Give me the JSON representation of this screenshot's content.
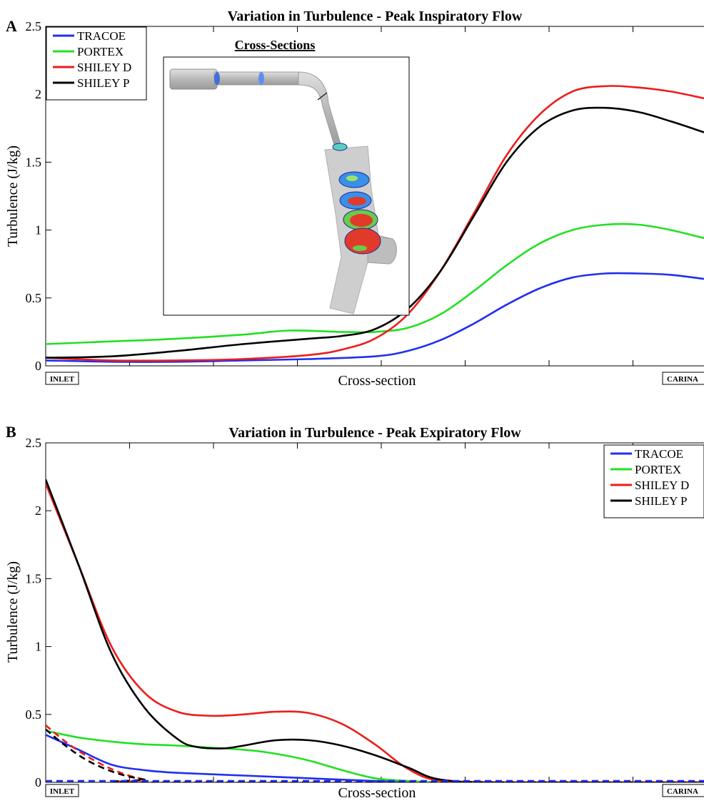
{
  "chart_data": [
    {
      "panel_letter": "A",
      "type": "line",
      "title": "Variation in Turbulence - Peak Inspiratory Flow",
      "xlabel": "Cross-section",
      "ylabel": "Turbulence (J/kg)",
      "x_start_label": "INLET",
      "x_end_label": "CARINA",
      "xlim": [
        0,
        1
      ],
      "ylim": [
        0,
        2.5
      ],
      "yticks": [
        "0",
        "0.5",
        "1",
        "1.5",
        "2",
        "2.5"
      ],
      "grid": false,
      "legend_position": "top-left",
      "inset_title": "Cross-Sections",
      "series": [
        {
          "name": "TRACOE",
          "color": "#1f2ff0",
          "dash": false,
          "x": [
            0,
            0.1,
            0.2,
            0.3,
            0.4,
            0.5,
            0.55,
            0.6,
            0.65,
            0.7,
            0.75,
            0.8,
            0.85,
            0.9,
            0.95,
            1.0
          ],
          "y": [
            0.04,
            0.03,
            0.03,
            0.04,
            0.05,
            0.07,
            0.11,
            0.19,
            0.31,
            0.45,
            0.57,
            0.65,
            0.68,
            0.68,
            0.67,
            0.64
          ]
        },
        {
          "name": "PORTEX",
          "color": "#22e022",
          "dash": false,
          "x": [
            0,
            0.1,
            0.2,
            0.3,
            0.37,
            0.45,
            0.5,
            0.55,
            0.6,
            0.65,
            0.7,
            0.75,
            0.8,
            0.85,
            0.9,
            0.95,
            1.0
          ],
          "y": [
            0.16,
            0.18,
            0.2,
            0.23,
            0.26,
            0.25,
            0.25,
            0.28,
            0.38,
            0.55,
            0.74,
            0.9,
            1.0,
            1.04,
            1.04,
            1.0,
            0.94
          ]
        },
        {
          "name": "SHILEY D",
          "color": "#ee1c1c",
          "dash": false,
          "x": [
            0,
            0.1,
            0.2,
            0.3,
            0.4,
            0.45,
            0.5,
            0.55,
            0.6,
            0.65,
            0.7,
            0.75,
            0.8,
            0.85,
            0.9,
            0.95,
            1.0
          ],
          "y": [
            0.06,
            0.04,
            0.04,
            0.05,
            0.08,
            0.12,
            0.2,
            0.38,
            0.7,
            1.12,
            1.55,
            1.85,
            2.02,
            2.06,
            2.05,
            2.02,
            1.97
          ]
        },
        {
          "name": "SHILEY P",
          "color": "#000000",
          "dash": false,
          "x": [
            0,
            0.1,
            0.2,
            0.3,
            0.4,
            0.45,
            0.5,
            0.55,
            0.6,
            0.65,
            0.7,
            0.75,
            0.8,
            0.85,
            0.9,
            0.95,
            1.0
          ],
          "y": [
            0.06,
            0.07,
            0.11,
            0.16,
            0.2,
            0.22,
            0.27,
            0.42,
            0.7,
            1.1,
            1.5,
            1.76,
            1.88,
            1.9,
            1.87,
            1.8,
            1.72
          ]
        }
      ]
    },
    {
      "panel_letter": "B",
      "type": "line",
      "title": "Variation in Turbulence - Peak Expiratory Flow",
      "xlabel": "Cross-section",
      "ylabel": "Turbulence (J/kg)",
      "x_start_label": "INLET",
      "x_end_label": "CARINA",
      "xlim": [
        0,
        1
      ],
      "ylim": [
        0,
        2.5
      ],
      "yticks": [
        "0",
        "0.5",
        "1",
        "1.5",
        "2",
        "2.5"
      ],
      "grid": false,
      "legend_position": "top-right",
      "series": [
        {
          "name": "TRACOE",
          "color": "#1f2ff0",
          "dash": false,
          "x": [
            0,
            0.05,
            0.1,
            0.15,
            0.2,
            0.3,
            0.4,
            0.5,
            0.6,
            0.7,
            0.8,
            0.9,
            1.0
          ],
          "y": [
            0.35,
            0.24,
            0.13,
            0.09,
            0.07,
            0.05,
            0.03,
            0.01,
            0.0,
            0.0,
            0.0,
            0.0,
            0.0
          ]
        },
        {
          "name": "PORTEX",
          "color": "#22e022",
          "dash": false,
          "x": [
            0,
            0.05,
            0.1,
            0.15,
            0.2,
            0.3,
            0.35,
            0.4,
            0.45,
            0.5,
            0.55,
            0.6,
            0.7,
            1.0
          ],
          "y": [
            0.38,
            0.33,
            0.3,
            0.28,
            0.27,
            0.24,
            0.21,
            0.16,
            0.09,
            0.03,
            0.01,
            0.0,
            0.0,
            0.0
          ]
        },
        {
          "name": "SHILEY D",
          "color": "#ee1c1c",
          "dash": false,
          "x": [
            0,
            0.05,
            0.1,
            0.15,
            0.2,
            0.25,
            0.3,
            0.35,
            0.4,
            0.45,
            0.5,
            0.55,
            0.6,
            0.7,
            1.0
          ],
          "y": [
            2.2,
            1.6,
            1.0,
            0.66,
            0.52,
            0.49,
            0.5,
            0.52,
            0.51,
            0.43,
            0.28,
            0.1,
            0.01,
            0.0,
            0.0
          ]
        },
        {
          "name": "SHILEY P",
          "color": "#000000",
          "dash": false,
          "x": [
            0,
            0.05,
            0.1,
            0.15,
            0.2,
            0.23,
            0.27,
            0.3,
            0.35,
            0.4,
            0.45,
            0.5,
            0.55,
            0.6,
            0.7,
            1.0
          ],
          "y": [
            2.23,
            1.6,
            0.95,
            0.55,
            0.32,
            0.26,
            0.25,
            0.27,
            0.31,
            0.31,
            0.27,
            0.2,
            0.11,
            0.02,
            0.0,
            0.0
          ]
        },
        {
          "name": "",
          "color": "#ee1c1c",
          "dash": true,
          "x": [
            0,
            0.03,
            0.06,
            0.09,
            0.12,
            0.15,
            0.17,
            1.0
          ],
          "y": [
            0.42,
            0.3,
            0.2,
            0.12,
            0.06,
            0.02,
            0.0,
            0.0
          ]
        },
        {
          "name": "",
          "color": "#000000",
          "dash": true,
          "x": [
            0,
            0.03,
            0.06,
            0.09,
            0.12,
            0.15,
            0.17,
            1.0
          ],
          "y": [
            0.39,
            0.27,
            0.17,
            0.1,
            0.05,
            0.02,
            0.0,
            0.0
          ]
        },
        {
          "name": "",
          "color": "#1f2ff0",
          "dash": true,
          "x": [
            0,
            1.0
          ],
          "y": [
            0.01,
            0.01
          ]
        }
      ]
    }
  ]
}
